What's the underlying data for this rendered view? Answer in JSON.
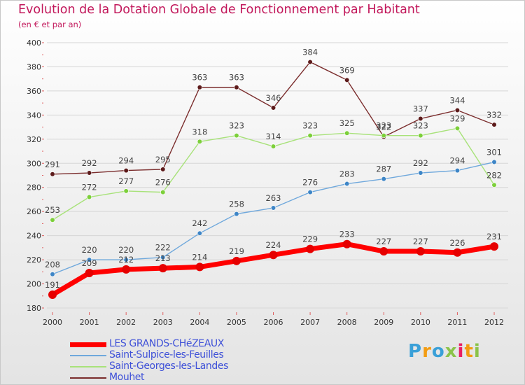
{
  "header": {
    "title": "Evolution de la Dotation Globale de Fonctionnement par Habitant",
    "subtitle": "(en € et par an)"
  },
  "brand": {
    "text": "Proxiti",
    "colors": [
      "#3aa0d8",
      "#f39c12",
      "#3aa0d8",
      "#8bc34a",
      "#e91e63",
      "#f39c12",
      "#8bc34a"
    ]
  },
  "colors": {
    "title": "#c2185b",
    "legend_text": "#3f51d8",
    "grid": "#d6d6d6",
    "axis_text": "#333333"
  },
  "chart_data": {
    "type": "line",
    "title": "Evolution de la Dotation Globale de Fonctionnement par Habitant",
    "subtitle": "(en € et par an)",
    "x": [
      "2000",
      "2001",
      "2002",
      "2003",
      "2004",
      "2005",
      "2006",
      "2007",
      "2008",
      "2009",
      "2010",
      "2011",
      "2012"
    ],
    "ylim": [
      180,
      400
    ],
    "yticks": [
      180,
      200,
      220,
      240,
      260,
      280,
      300,
      320,
      340,
      360,
      380,
      400
    ],
    "grid": "horizontal",
    "legend_position": "bottom-left",
    "series": [
      {
        "name": "LES GRANDS-CHéZEAUX",
        "color": "#ff0000",
        "marker": "#e60000",
        "width": 7,
        "values": [
          191,
          209,
          212,
          213,
          214,
          219,
          224,
          229,
          233,
          227,
          227,
          226,
          231
        ]
      },
      {
        "name": "Saint-Sulpice-les-Feuilles",
        "color": "#6fa8dc",
        "marker": "#3d85c6",
        "width": 1.4,
        "values": [
          208,
          220,
          220,
          222,
          242,
          258,
          263,
          276,
          283,
          287,
          292,
          294,
          301
        ]
      },
      {
        "name": "Saint-Georges-les-Landes",
        "color": "#a8e27a",
        "marker": "#7ccf3a",
        "width": 1.4,
        "values": [
          253,
          272,
          277,
          276,
          318,
          323,
          314,
          323,
          325,
          323,
          323,
          329,
          282
        ]
      },
      {
        "name": "Mouhet",
        "color": "#7b2d2d",
        "marker": "#5c1a1a",
        "width": 1.4,
        "values": [
          291,
          292,
          294,
          295,
          363,
          363,
          346,
          384,
          369,
          322,
          337,
          344,
          332
        ]
      }
    ]
  }
}
